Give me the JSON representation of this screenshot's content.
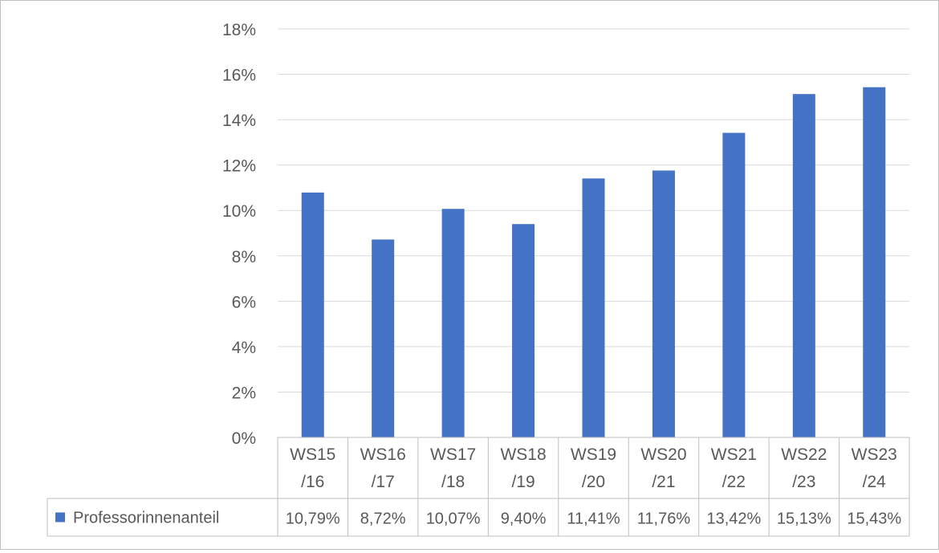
{
  "chart_data": {
    "type": "bar",
    "title": "",
    "xlabel": "",
    "ylabel": "",
    "categories": [
      [
        "WS15",
        "/16"
      ],
      [
        "WS16",
        "/17"
      ],
      [
        "WS17",
        "/18"
      ],
      [
        "WS18",
        "/19"
      ],
      [
        "WS19",
        "/20"
      ],
      [
        "WS20",
        "/21"
      ],
      [
        "WS21",
        "/22"
      ],
      [
        "WS22",
        "/23"
      ],
      [
        "WS23",
        "/24"
      ]
    ],
    "series": [
      {
        "name": "Professorinnenanteil",
        "values": [
          10.79,
          8.72,
          10.07,
          9.4,
          11.41,
          11.76,
          13.42,
          15.13,
          15.43
        ],
        "labels": [
          "10,79%",
          "8,72%",
          "10,07%",
          "9,40%",
          "11,41%",
          "11,76%",
          "13,42%",
          "15,13%",
          "15,43%"
        ],
        "color": "#4472c4"
      }
    ],
    "ylim": [
      0,
      18
    ],
    "yticks": [
      0,
      2,
      4,
      6,
      8,
      10,
      12,
      14,
      16,
      18
    ],
    "ytick_labels": [
      "0%",
      "2%",
      "4%",
      "6%",
      "8%",
      "10%",
      "12%",
      "14%",
      "16%",
      "18%"
    ],
    "grid": true,
    "legend": "data-table",
    "data_table": true
  }
}
